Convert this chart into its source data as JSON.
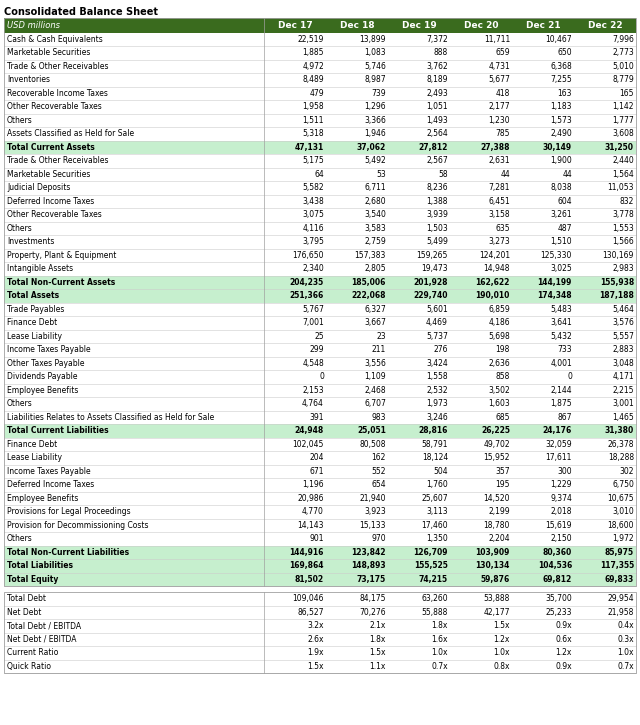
{
  "title": "Consolidated Balance Sheet",
  "subtitle": "USD millions",
  "columns": [
    "Dec 17",
    "Dec 18",
    "Dec 19",
    "Dec 20",
    "Dec 21",
    "Dec 22"
  ],
  "header_bg": "#3a6b1e",
  "header_fg": "#ffffff",
  "highlight_bg": "#c6efce",
  "highlight_fg": "#000000",
  "normal_bg": "#ffffff",
  "normal_fg": "#000000",
  "border_color": "#a0a0a0",
  "line_color": "#cccccc",
  "rows": [
    {
      "label": "Cash & Cash Equivalents",
      "values": [
        "22,519",
        "13,899",
        "7,372",
        "11,711",
        "10,467",
        "7,996"
      ],
      "type": "normal"
    },
    {
      "label": "Marketable Securities",
      "values": [
        "1,885",
        "1,083",
        "888",
        "659",
        "650",
        "2,773"
      ],
      "type": "normal"
    },
    {
      "label": "Trade & Other Receivables",
      "values": [
        "4,972",
        "5,746",
        "3,762",
        "4,731",
        "6,368",
        "5,010"
      ],
      "type": "normal"
    },
    {
      "label": "Inventories",
      "values": [
        "8,489",
        "8,987",
        "8,189",
        "5,677",
        "7,255",
        "8,779"
      ],
      "type": "normal"
    },
    {
      "label": "Recoverable Income Taxes",
      "values": [
        "479",
        "739",
        "2,493",
        "418",
        "163",
        "165"
      ],
      "type": "normal"
    },
    {
      "label": "Other Recoverable Taxes",
      "values": [
        "1,958",
        "1,296",
        "1,051",
        "2,177",
        "1,183",
        "1,142"
      ],
      "type": "normal"
    },
    {
      "label": "Others",
      "values": [
        "1,511",
        "3,366",
        "1,493",
        "1,230",
        "1,573",
        "1,777"
      ],
      "type": "normal"
    },
    {
      "label": "Assets Classified as Held for Sale",
      "values": [
        "5,318",
        "1,946",
        "2,564",
        "785",
        "2,490",
        "3,608"
      ],
      "type": "normal"
    },
    {
      "label": "Total Current Assets",
      "values": [
        "47,131",
        "37,062",
        "27,812",
        "27,388",
        "30,149",
        "31,250"
      ],
      "type": "highlight"
    },
    {
      "label": "Trade & Other Receivables",
      "values": [
        "5,175",
        "5,492",
        "2,567",
        "2,631",
        "1,900",
        "2,440"
      ],
      "type": "normal"
    },
    {
      "label": "Marketable Securities",
      "values": [
        "64",
        "53",
        "58",
        "44",
        "44",
        "1,564"
      ],
      "type": "normal"
    },
    {
      "label": "Judicial Deposits",
      "values": [
        "5,582",
        "6,711",
        "8,236",
        "7,281",
        "8,038",
        "11,053"
      ],
      "type": "normal"
    },
    {
      "label": "Deferred Income Taxes",
      "values": [
        "3,438",
        "2,680",
        "1,388",
        "6,451",
        "604",
        "832"
      ],
      "type": "normal"
    },
    {
      "label": "Other Recoverable Taxes",
      "values": [
        "3,075",
        "3,540",
        "3,939",
        "3,158",
        "3,261",
        "3,778"
      ],
      "type": "normal"
    },
    {
      "label": "Others",
      "values": [
        "4,116",
        "3,583",
        "1,503",
        "635",
        "487",
        "1,553"
      ],
      "type": "normal"
    },
    {
      "label": "Investments",
      "values": [
        "3,795",
        "2,759",
        "5,499",
        "3,273",
        "1,510",
        "1,566"
      ],
      "type": "normal"
    },
    {
      "label": "Property, Plant & Equipment",
      "values": [
        "176,650",
        "157,383",
        "159,265",
        "124,201",
        "125,330",
        "130,169"
      ],
      "type": "normal"
    },
    {
      "label": "Intangible Assets",
      "values": [
        "2,340",
        "2,805",
        "19,473",
        "14,948",
        "3,025",
        "2,983"
      ],
      "type": "normal"
    },
    {
      "label": "Total Non-Current Assets",
      "values": [
        "204,235",
        "185,006",
        "201,928",
        "162,622",
        "144,199",
        "155,938"
      ],
      "type": "highlight"
    },
    {
      "label": "Total Assets",
      "values": [
        "251,366",
        "222,068",
        "229,740",
        "190,010",
        "174,348",
        "187,188"
      ],
      "type": "highlight"
    },
    {
      "label": "Trade Payables",
      "values": [
        "5,767",
        "6,327",
        "5,601",
        "6,859",
        "5,483",
        "5,464"
      ],
      "type": "normal"
    },
    {
      "label": "Finance Debt",
      "values": [
        "7,001",
        "3,667",
        "4,469",
        "4,186",
        "3,641",
        "3,576"
      ],
      "type": "normal"
    },
    {
      "label": "Lease Liability",
      "values": [
        "25",
        "23",
        "5,737",
        "5,698",
        "5,432",
        "5,557"
      ],
      "type": "normal"
    },
    {
      "label": "Income Taxes Payable",
      "values": [
        "299",
        "211",
        "276",
        "198",
        "733",
        "2,883"
      ],
      "type": "normal"
    },
    {
      "label": "Other Taxes Payable",
      "values": [
        "4,548",
        "3,556",
        "3,424",
        "2,636",
        "4,001",
        "3,048"
      ],
      "type": "normal"
    },
    {
      "label": "Dividends Payable",
      "values": [
        "0",
        "1,109",
        "1,558",
        "858",
        "0",
        "4,171"
      ],
      "type": "normal"
    },
    {
      "label": "Employee Benefits",
      "values": [
        "2,153",
        "2,468",
        "2,532",
        "3,502",
        "2,144",
        "2,215"
      ],
      "type": "normal"
    },
    {
      "label": "Others",
      "values": [
        "4,764",
        "6,707",
        "1,973",
        "1,603",
        "1,875",
        "3,001"
      ],
      "type": "normal"
    },
    {
      "label": "Liabilities Relates to Assets Classified as Held for Sale",
      "values": [
        "391",
        "983",
        "3,246",
        "685",
        "867",
        "1,465"
      ],
      "type": "normal"
    },
    {
      "label": "Total Current Liabilities",
      "values": [
        "24,948",
        "25,051",
        "28,816",
        "26,225",
        "24,176",
        "31,380"
      ],
      "type": "highlight"
    },
    {
      "label": "Finance Debt",
      "values": [
        "102,045",
        "80,508",
        "58,791",
        "49,702",
        "32,059",
        "26,378"
      ],
      "type": "normal"
    },
    {
      "label": "Lease Liability",
      "values": [
        "204",
        "162",
        "18,124",
        "15,952",
        "17,611",
        "18,288"
      ],
      "type": "normal"
    },
    {
      "label": "Income Taxes Payable",
      "values": [
        "671",
        "552",
        "504",
        "357",
        "300",
        "302"
      ],
      "type": "normal"
    },
    {
      "label": "Deferred Income Taxes",
      "values": [
        "1,196",
        "654",
        "1,760",
        "195",
        "1,229",
        "6,750"
      ],
      "type": "normal"
    },
    {
      "label": "Employee Benefits",
      "values": [
        "20,986",
        "21,940",
        "25,607",
        "14,520",
        "9,374",
        "10,675"
      ],
      "type": "normal"
    },
    {
      "label": "Provisions for Legal Proceedings",
      "values": [
        "4,770",
        "3,923",
        "3,113",
        "2,199",
        "2,018",
        "3,010"
      ],
      "type": "normal"
    },
    {
      "label": "Provision for Decommissioning Costs",
      "values": [
        "14,143",
        "15,133",
        "17,460",
        "18,780",
        "15,619",
        "18,600"
      ],
      "type": "normal"
    },
    {
      "label": "Others",
      "values": [
        "901",
        "970",
        "1,350",
        "2,204",
        "2,150",
        "1,972"
      ],
      "type": "normal"
    },
    {
      "label": "Total Non-Current Liabilities",
      "values": [
        "144,916",
        "123,842",
        "126,709",
        "103,909",
        "80,360",
        "85,975"
      ],
      "type": "highlight"
    },
    {
      "label": "Total Liabilities",
      "values": [
        "169,864",
        "148,893",
        "155,525",
        "130,134",
        "104,536",
        "117,355"
      ],
      "type": "highlight"
    },
    {
      "label": "Total Equity",
      "values": [
        "81,502",
        "73,175",
        "74,215",
        "59,876",
        "69,812",
        "69,833"
      ],
      "type": "highlight"
    }
  ],
  "extra_rows": [
    {
      "label": "Total Debt",
      "values": [
        "109,046",
        "84,175",
        "63,260",
        "53,888",
        "35,700",
        "29,954"
      ],
      "type": "normal"
    },
    {
      "label": "Net Debt",
      "values": [
        "86,527",
        "70,276",
        "55,888",
        "42,177",
        "25,233",
        "21,958"
      ],
      "type": "normal"
    },
    {
      "label": "Total Debt / EBITDA",
      "values": [
        "3.2x",
        "2.1x",
        "1.8x",
        "1.5x",
        "0.9x",
        "0.4x"
      ],
      "type": "normal"
    },
    {
      "label": "Net Debt / EBITDA",
      "values": [
        "2.6x",
        "1.8x",
        "1.6x",
        "1.2x",
        "0.6x",
        "0.3x"
      ],
      "type": "normal"
    },
    {
      "label": "Current Ratio",
      "values": [
        "1.9x",
        "1.5x",
        "1.0x",
        "1.0x",
        "1.2x",
        "1.0x"
      ],
      "type": "normal"
    },
    {
      "label": "Quick Ratio",
      "values": [
        "1.5x",
        "1.1x",
        "0.7x",
        "0.8x",
        "0.9x",
        "0.7x"
      ],
      "type": "normal"
    }
  ]
}
